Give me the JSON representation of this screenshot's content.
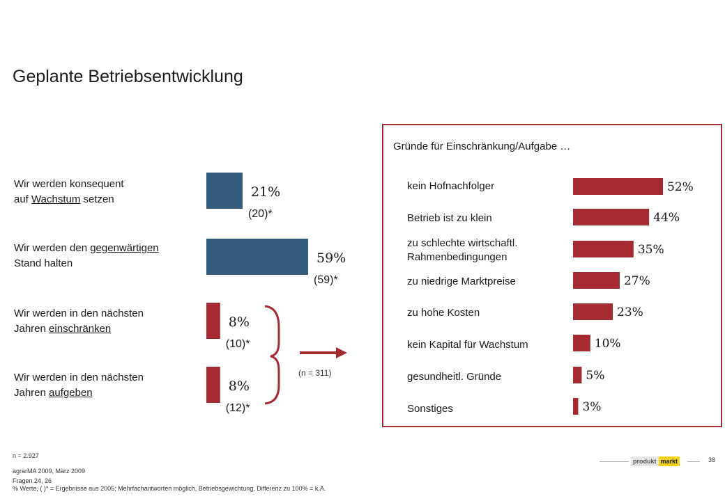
{
  "page": {
    "title": "Geplante Betriebsentwicklung",
    "page_number": "38"
  },
  "left_labels": [
    {
      "pre": "Wir werden konsequent",
      "l2_pre": "auf ",
      "u": "Wachstum",
      "l2_post": " setzen"
    },
    {
      "pre": "Wir werden den ",
      "u1": "gegenwärtigen",
      "l2": "Stand halten"
    },
    {
      "pre": "Wir werden in den nächsten",
      "l2_pre": "Jahren ",
      "u": "einschränken"
    },
    {
      "pre": "Wir werden in den nächsten",
      "l2_pre": "Jahren ",
      "u": "aufgeben"
    }
  ],
  "n_note": "(n = 311)",
  "reasons": {
    "title": "Gründe für Einschränkung/Aufgabe …",
    "labels": [
      "kein Hofnachfolger",
      "Betrieb ist zu klein",
      "zu schlechte wirtschaftl. Rahmenbedingungen",
      "zu niedrige Marktpreise",
      "zu hohe Kosten",
      "kein Kapital für Wachstum",
      "gesundheitl. Gründe",
      "Sonstiges"
    ]
  },
  "footer": {
    "n": "n = 2.927",
    "source": "agrarMA 2009, März 2009",
    "questions": "Fragen 24, 26",
    "note": "% Werte, ( )* = Ergebnisse aus 2005; Mehrfachantworten möglich, Betriebsgewichtung, Differenz zu 100% = k.A."
  },
  "logo": {
    "left": "produkt",
    "right": "markt"
  },
  "colors": {
    "blue": "#355c7d",
    "red": "#a52a31"
  },
  "chart_data": [
    {
      "type": "bar",
      "orientation": "horizontal",
      "categories": [
        "Wir werden konsequent auf Wachstum setzen",
        "Wir werden den gegenwärtigen Stand halten",
        "Wir werden in den nächsten Jahren einschränken",
        "Wir werden in den nächsten Jahren aufgeben"
      ],
      "values": [
        21,
        59,
        8,
        8
      ],
      "value_labels": [
        "21%",
        "59%",
        "8%",
        "8%"
      ],
      "previous_labels": [
        "(20)*",
        "(59)*",
        "(10)*",
        "(12)*"
      ],
      "colors": [
        "#355c7d",
        "#355c7d",
        "#a52a31",
        "#a52a31"
      ],
      "xlim": [
        0,
        59
      ]
    },
    {
      "type": "bar",
      "orientation": "horizontal",
      "categories": [
        "kein Hofnachfolger",
        "Betrieb ist zu klein",
        "zu schlechte wirtschaftl. Rahmenbedingungen",
        "zu niedrige Marktpreise",
        "zu hohe Kosten",
        "kein Kapital für Wachstum",
        "gesundheitl. Gründe",
        "Sonstiges"
      ],
      "values": [
        52,
        44,
        35,
        27,
        23,
        10,
        5,
        3
      ],
      "value_labels": [
        "52%",
        "44%",
        "35%",
        "27%",
        "23%",
        "10%",
        "5%",
        "3%"
      ],
      "color": "#a52a31",
      "xlim": [
        0,
        52
      ]
    }
  ]
}
